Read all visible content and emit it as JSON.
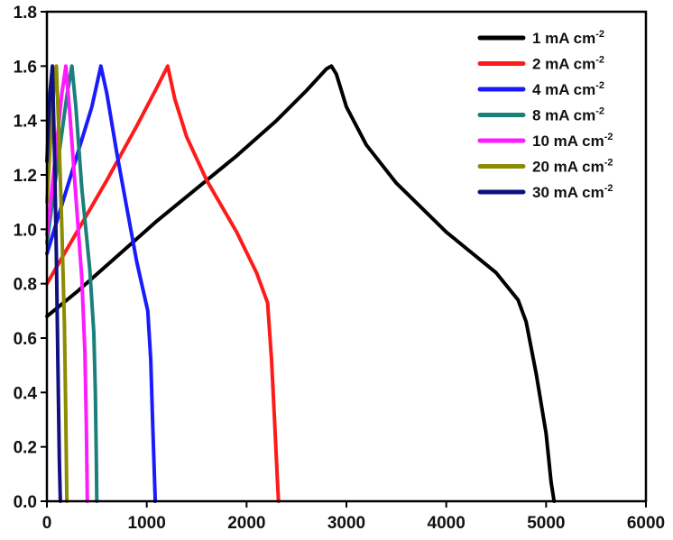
{
  "chart_data": {
    "type": "line",
    "title": "",
    "xlabel": "",
    "ylabel": "",
    "xlim": [
      0,
      6000
    ],
    "ylim": [
      0,
      1.8
    ],
    "xticks": [
      "0",
      "1000",
      "2000",
      "3000",
      "4000",
      "5000",
      "6000"
    ],
    "yticks": [
      "0.0",
      "0.2",
      "0.4",
      "0.6",
      "0.8",
      "1.0",
      "1.2",
      "1.4",
      "1.6",
      "1.8"
    ],
    "grid": false,
    "legend_position": "top-right",
    "series": [
      {
        "name": "1 mA cm",
        "sup": "-2",
        "color": "#000000",
        "points": [
          [
            0,
            0.68
          ],
          [
            300,
            0.77
          ],
          [
            700,
            0.9
          ],
          [
            1100,
            1.03
          ],
          [
            1500,
            1.15
          ],
          [
            1900,
            1.27
          ],
          [
            2300,
            1.4
          ],
          [
            2600,
            1.51
          ],
          [
            2800,
            1.59
          ],
          [
            2850,
            1.6
          ],
          [
            2900,
            1.57
          ],
          [
            3000,
            1.45
          ],
          [
            3200,
            1.31
          ],
          [
            3500,
            1.17
          ],
          [
            4000,
            0.99
          ],
          [
            4500,
            0.84
          ],
          [
            4720,
            0.74
          ],
          [
            4800,
            0.66
          ],
          [
            4900,
            0.47
          ],
          [
            5000,
            0.25
          ],
          [
            5050,
            0.07
          ],
          [
            5080,
            0.0
          ]
        ]
      },
      {
        "name": "2 mA cm",
        "sup": "-2",
        "color": "#ff1a1a",
        "points": [
          [
            0,
            0.8
          ],
          [
            300,
            0.99
          ],
          [
            600,
            1.18
          ],
          [
            900,
            1.38
          ],
          [
            1100,
            1.52
          ],
          [
            1210,
            1.6
          ],
          [
            1280,
            1.48
          ],
          [
            1400,
            1.34
          ],
          [
            1600,
            1.18
          ],
          [
            1900,
            0.99
          ],
          [
            2100,
            0.84
          ],
          [
            2210,
            0.73
          ],
          [
            2250,
            0.52
          ],
          [
            2280,
            0.3
          ],
          [
            2310,
            0.07
          ],
          [
            2320,
            0.0
          ]
        ]
      },
      {
        "name": "4 mA cm",
        "sup": "-2",
        "color": "#1a1aff",
        "points": [
          [
            0,
            0.91
          ],
          [
            150,
            1.09
          ],
          [
            300,
            1.27
          ],
          [
            450,
            1.45
          ],
          [
            540,
            1.6
          ],
          [
            600,
            1.5
          ],
          [
            700,
            1.28
          ],
          [
            800,
            1.08
          ],
          [
            900,
            0.88
          ],
          [
            1010,
            0.7
          ],
          [
            1040,
            0.52
          ],
          [
            1060,
            0.28
          ],
          [
            1080,
            0.06
          ],
          [
            1085,
            0.0
          ]
        ]
      },
      {
        "name": "8 mA cm",
        "sup": "-2",
        "color": "#1b7f7c",
        "points": [
          [
            0,
            0.95
          ],
          [
            100,
            1.22
          ],
          [
            200,
            1.49
          ],
          [
            250,
            1.6
          ],
          [
            290,
            1.45
          ],
          [
            350,
            1.15
          ],
          [
            430,
            0.85
          ],
          [
            470,
            0.62
          ],
          [
            485,
            0.4
          ],
          [
            495,
            0.15
          ],
          [
            500,
            0.0
          ]
        ]
      },
      {
        "name": "10 mA cm",
        "sup": "-2",
        "color": "#ff1aff",
        "points": [
          [
            0,
            0.98
          ],
          [
            80,
            1.25
          ],
          [
            150,
            1.5
          ],
          [
            190,
            1.6
          ],
          [
            230,
            1.42
          ],
          [
            290,
            1.12
          ],
          [
            350,
            0.82
          ],
          [
            380,
            0.55
          ],
          [
            395,
            0.28
          ],
          [
            405,
            0.0
          ]
        ]
      },
      {
        "name": "20 mA cm",
        "sup": "-2",
        "color": "#8c8c00",
        "points": [
          [
            0,
            1.1
          ],
          [
            40,
            1.35
          ],
          [
            80,
            1.58
          ],
          [
            95,
            1.6
          ],
          [
            120,
            1.35
          ],
          [
            150,
            1.0
          ],
          [
            175,
            0.65
          ],
          [
            190,
            0.3
          ],
          [
            200,
            0.0
          ]
        ]
      },
      {
        "name": "30 mA cm",
        "sup": "-2",
        "color": "#101080",
        "points": [
          [
            0,
            1.25
          ],
          [
            30,
            1.5
          ],
          [
            55,
            1.6
          ],
          [
            75,
            1.3
          ],
          [
            95,
            0.9
          ],
          [
            110,
            0.5
          ],
          [
            125,
            0.15
          ],
          [
            135,
            0.0
          ]
        ]
      }
    ]
  }
}
